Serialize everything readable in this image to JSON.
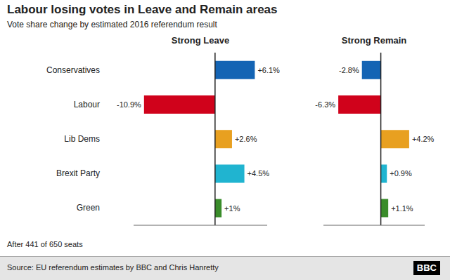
{
  "title": "Labour losing votes in Leave and Remain areas",
  "subtitle": "Vote share change by estimated 2016 referendum result",
  "annotations": [
    "After 441 of 650 seats",
    "Source: EU referendum estimates by BBC and Chris Hanretty",
    "BBC"
  ],
  "chart_data": [
    {
      "type": "bar",
      "orientation": "horizontal",
      "title": "Strong Leave",
      "categories": [
        "Conservatives",
        "Labour",
        "Lib Dems",
        "Brexit Party",
        "Green"
      ],
      "values": [
        6.1,
        -10.9,
        2.6,
        4.5,
        1.0
      ],
      "value_labels": [
        "+6.1%",
        "-10.9%",
        "+2.6%",
        "+4.5%",
        "+1%"
      ],
      "colors": [
        "#1464b4",
        "#d0021b",
        "#e8a020",
        "#20b4d0",
        "#3a8c2a"
      ],
      "xlim": [
        -12.5,
        8.0
      ],
      "data_labels": true,
      "tick_labels": "y",
      "grid": false
    },
    {
      "type": "bar",
      "orientation": "horizontal",
      "title": "Strong Remain",
      "categories": [
        "Conservatives",
        "Labour",
        "Lib Dems",
        "Brexit Party",
        "Green"
      ],
      "values": [
        -2.8,
        -6.3,
        4.2,
        0.9,
        1.1
      ],
      "value_labels": [
        "-2.8%",
        "-6.3%",
        "+4.2%",
        "+0.9%",
        "+1.1%"
      ],
      "colors": [
        "#1464b4",
        "#d0021b",
        "#e8a020",
        "#20b4d0",
        "#3a8c2a"
      ],
      "xlim": [
        -8.5,
        6.5
      ],
      "data_labels": true,
      "tick_labels": false,
      "grid": false
    }
  ]
}
